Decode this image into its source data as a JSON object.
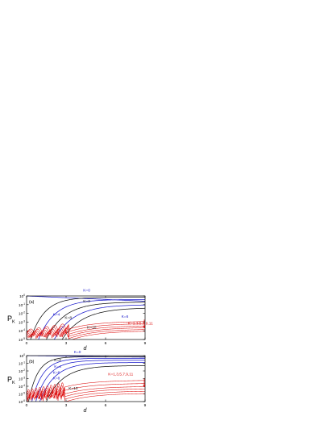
{
  "chart_data": [
    {
      "panel_label": "(a)",
      "type": "line",
      "xlabel": "d",
      "ylabel": "P",
      "ylabel_sub": "K",
      "xlim": [
        0,
        9
      ],
      "ylim_log10": [
        -5,
        0
      ],
      "y_scale": "log",
      "x_ticks": [
        0,
        3,
        6,
        9
      ],
      "y_ticks": [
        {
          "exp": 0,
          "label": "10",
          "sup": "0"
        },
        {
          "exp": -1,
          "label": "10",
          "sup": "-1"
        },
        {
          "exp": -2,
          "label": "10",
          "sup": "-2"
        },
        {
          "exp": -3,
          "label": "10",
          "sup": "-3"
        },
        {
          "exp": -4,
          "label": "10",
          "sup": "-4"
        },
        {
          "exp": -5,
          "label": "10",
          "sup": "-5"
        }
      ],
      "annotations": [
        {
          "text": "K=0",
          "color": "#1a1acc",
          "d": 4.3,
          "p": 0.5
        },
        {
          "text": "K=2",
          "color": "#111111",
          "d": 4.3,
          "p": -0.75
        },
        {
          "text": "K=4",
          "color": "#1a1acc",
          "d": 2.0,
          "p": -2.25
        },
        {
          "text": "K=6",
          "color": "#1a1acc",
          "d": 7.2,
          "p": -2.5
        },
        {
          "text": "K=8",
          "color": "#111111",
          "d": 2.9,
          "p": -2.65
        },
        {
          "text": "K=10",
          "color": "#111111",
          "d": 4.6,
          "p": -3.75
        },
        {
          "text": "K=1,3,5,7,9,11",
          "color": "#dd1111",
          "d": 7.7,
          "p": -3.3
        }
      ],
      "series": [
        {
          "label": "K=0",
          "color": "#1a1acc",
          "kind": "decay",
          "p_start": 0,
          "p_end": -0.6
        },
        {
          "label": "K=2",
          "color": "#111111",
          "kind": "rise",
          "d0": 0.3,
          "p_end": -0.15,
          "rate": 0.6
        },
        {
          "label": "K=4",
          "color": "#1a1acc",
          "kind": "rise",
          "d0": 0.9,
          "p_end": -0.4,
          "rate": 0.5
        },
        {
          "label": "K=6",
          "color": "#111111",
          "kind": "rise",
          "d0": 1.5,
          "p_end": -0.7,
          "rate": 0.45
        },
        {
          "label": "K=8",
          "color": "#1a1acc",
          "kind": "rise",
          "d0": 2.1,
          "p_end": -1.0,
          "rate": 0.42
        },
        {
          "label": "K=10",
          "color": "#111111",
          "kind": "rise",
          "d0": 2.7,
          "p_end": -1.35,
          "rate": 0.4
        },
        {
          "label": "K=1,3,5,7,9,11",
          "color": "#dd1111",
          "kind": "odd",
          "levels": [
            -2.9,
            -3.15,
            -3.4,
            -3.6,
            -3.8,
            -4.0
          ]
        }
      ]
    },
    {
      "panel_label": "(b)",
      "type": "line",
      "xlabel": "d",
      "ylabel": "P",
      "ylabel_sub": "K",
      "xlim": [
        0,
        9
      ],
      "ylim_log10": [
        -6,
        0
      ],
      "y_scale": "log",
      "x_ticks": [
        0,
        3,
        6,
        9
      ],
      "y_ticks": [
        {
          "exp": 0,
          "label": "10",
          "sup": "0"
        },
        {
          "exp": -1,
          "label": "10",
          "sup": "-1"
        },
        {
          "exp": -2,
          "label": "10",
          "sup": "-2"
        },
        {
          "exp": -3,
          "label": "10",
          "sup": "-3"
        },
        {
          "exp": -4,
          "label": "10",
          "sup": "-4"
        },
        {
          "exp": -5,
          "label": "10",
          "sup": "-5"
        },
        {
          "exp": -6,
          "label": "10",
          "sup": "-6"
        }
      ],
      "annotations": [
        {
          "text": "K=0",
          "color": "#1a1acc",
          "d": 3.6,
          "p": 0.3
        },
        {
          "text": "K=2",
          "color": "#111111",
          "d": 2.1,
          "p": -0.75
        },
        {
          "text": "K=4",
          "color": "#1a1acc",
          "d": 2.1,
          "p": -1.6
        },
        {
          "text": "K=6",
          "color": "#1a1acc",
          "d": 2.0,
          "p": -2.35
        },
        {
          "text": "K=8",
          "color": "#1a1acc",
          "d": 2.0,
          "p": -3.1
        },
        {
          "text": "K=10",
          "color": "#111111",
          "d": 3.2,
          "p": -4.4
        },
        {
          "text": "K=1,3,5,7,9,11",
          "color": "#dd1111",
          "d": 6.2,
          "p": -2.6
        }
      ],
      "series": [
        {
          "label": "K=0",
          "color": "#1a1acc",
          "kind": "decay",
          "p_start": 0,
          "p_end": -0.2
        },
        {
          "label": "K=2",
          "color": "#111111",
          "kind": "rise",
          "d0": 0.15,
          "p_end": -0.15,
          "rate": 0.9
        },
        {
          "label": "K=4",
          "color": "#1a1acc",
          "kind": "rise",
          "d0": 0.4,
          "p_end": -0.35,
          "rate": 0.75
        },
        {
          "label": "K=6",
          "color": "#1a1acc",
          "kind": "rise",
          "d0": 0.7,
          "p_end": -0.6,
          "rate": 0.65
        },
        {
          "label": "K=8",
          "color": "#1a1acc",
          "kind": "rise",
          "d0": 1.0,
          "p_end": -0.9,
          "rate": 0.55
        },
        {
          "label": "K=10",
          "color": "#111111",
          "kind": "rise",
          "d0": 1.5,
          "p_end": -1.3,
          "rate": 0.5
        },
        {
          "label": "K=1,3,5,7,9,11",
          "color": "#dd1111",
          "kind": "odd",
          "levels": [
            -3.2,
            -3.6,
            -4.0,
            -4.3,
            -4.6,
            -4.9
          ]
        }
      ]
    }
  ]
}
